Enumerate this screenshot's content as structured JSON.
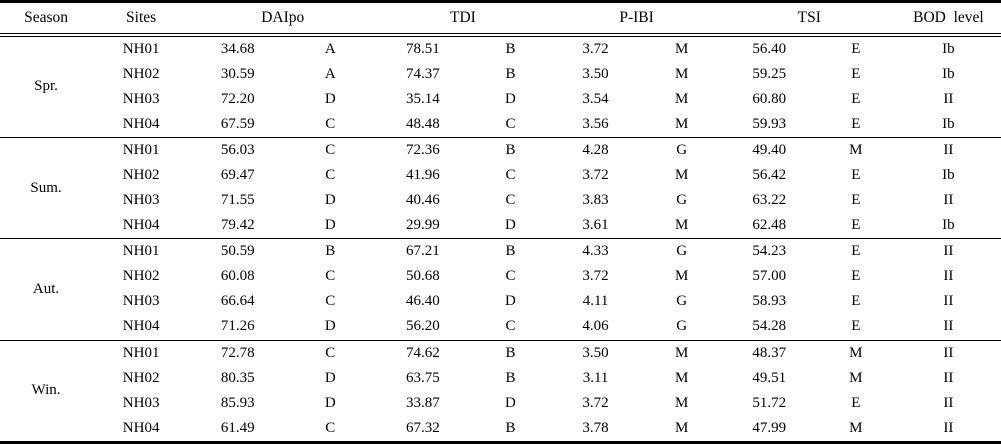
{
  "colors": {
    "text": "#000000",
    "background": "#ffffff",
    "border": "#000000"
  },
  "table": {
    "headers": {
      "season": "Season",
      "sites": "Sites",
      "daipo": "DAIpo",
      "tdi": "TDI",
      "pibi": "P-IBI",
      "tsi": "TSI",
      "bod": "BOD level"
    },
    "groups": [
      {
        "season": "Spr.",
        "rows": [
          {
            "site": "NH01",
            "daipo": "34.68",
            "daipo_grade": "A",
            "tdi": "78.51",
            "tdi_grade": "B",
            "pibi": "3.72",
            "pibi_grade": "M",
            "tsi": "56.40",
            "tsi_grade": "E",
            "bod": "Ib"
          },
          {
            "site": "NH02",
            "daipo": "30.59",
            "daipo_grade": "A",
            "tdi": "74.37",
            "tdi_grade": "B",
            "pibi": "3.50",
            "pibi_grade": "M",
            "tsi": "59.25",
            "tsi_grade": "E",
            "bod": "Ib"
          },
          {
            "site": "NH03",
            "daipo": "72.20",
            "daipo_grade": "D",
            "tdi": "35.14",
            "tdi_grade": "D",
            "pibi": "3.54",
            "pibi_grade": "M",
            "tsi": "60.80",
            "tsi_grade": "E",
            "bod": "II"
          },
          {
            "site": "NH04",
            "daipo": "67.59",
            "daipo_grade": "C",
            "tdi": "48.48",
            "tdi_grade": "C",
            "pibi": "3.56",
            "pibi_grade": "M",
            "tsi": "59.93",
            "tsi_grade": "E",
            "bod": "Ib"
          }
        ]
      },
      {
        "season": "Sum.",
        "rows": [
          {
            "site": "NH01",
            "daipo": "56.03",
            "daipo_grade": "C",
            "tdi": "72.36",
            "tdi_grade": "B",
            "pibi": "4.28",
            "pibi_grade": "G",
            "tsi": "49.40",
            "tsi_grade": "M",
            "bod": "II"
          },
          {
            "site": "NH02",
            "daipo": "69.47",
            "daipo_grade": "C",
            "tdi": "41.96",
            "tdi_grade": "C",
            "pibi": "3.72",
            "pibi_grade": "M",
            "tsi": "56.42",
            "tsi_grade": "E",
            "bod": "Ib"
          },
          {
            "site": "NH03",
            "daipo": "71.55",
            "daipo_grade": "D",
            "tdi": "40.46",
            "tdi_grade": "C",
            "pibi": "3.83",
            "pibi_grade": "G",
            "tsi": "63.22",
            "tsi_grade": "E",
            "bod": "II"
          },
          {
            "site": "NH04",
            "daipo": "79.42",
            "daipo_grade": "D",
            "tdi": "29.99",
            "tdi_grade": "D",
            "pibi": "3.61",
            "pibi_grade": "M",
            "tsi": "62.48",
            "tsi_grade": "E",
            "bod": "Ib"
          }
        ]
      },
      {
        "season": "Aut.",
        "rows": [
          {
            "site": "NH01",
            "daipo": "50.59",
            "daipo_grade": "B",
            "tdi": "67.21",
            "tdi_grade": "B",
            "pibi": "4.33",
            "pibi_grade": "G",
            "tsi": "54.23",
            "tsi_grade": "E",
            "bod": "II"
          },
          {
            "site": "NH02",
            "daipo": "60.08",
            "daipo_grade": "C",
            "tdi": "50.68",
            "tdi_grade": "C",
            "pibi": "3.72",
            "pibi_grade": "M",
            "tsi": "57.00",
            "tsi_grade": "E",
            "bod": "II"
          },
          {
            "site": "NH03",
            "daipo": "66.64",
            "daipo_grade": "C",
            "tdi": "46.40",
            "tdi_grade": "D",
            "pibi": "4.11",
            "pibi_grade": "G",
            "tsi": "58.93",
            "tsi_grade": "E",
            "bod": "II"
          },
          {
            "site": "NH04",
            "daipo": "71.26",
            "daipo_grade": "D",
            "tdi": "56.20",
            "tdi_grade": "C",
            "pibi": "4.06",
            "pibi_grade": "G",
            "tsi": "54.28",
            "tsi_grade": "E",
            "bod": "II"
          }
        ]
      },
      {
        "season": "Win.",
        "rows": [
          {
            "site": "NH01",
            "daipo": "72.78",
            "daipo_grade": "C",
            "tdi": "74.62",
            "tdi_grade": "B",
            "pibi": "3.50",
            "pibi_grade": "M",
            "tsi": "48.37",
            "tsi_grade": "M",
            "bod": "II"
          },
          {
            "site": "NH02",
            "daipo": "80.35",
            "daipo_grade": "D",
            "tdi": "63.75",
            "tdi_grade": "B",
            "pibi": "3.11",
            "pibi_grade": "M",
            "tsi": "49.51",
            "tsi_grade": "M",
            "bod": "II"
          },
          {
            "site": "NH03",
            "daipo": "85.93",
            "daipo_grade": "D",
            "tdi": "33.87",
            "tdi_grade": "D",
            "pibi": "3.72",
            "pibi_grade": "M",
            "tsi": "51.72",
            "tsi_grade": "E",
            "bod": "II"
          },
          {
            "site": "NH04",
            "daipo": "61.49",
            "daipo_grade": "C",
            "tdi": "67.32",
            "tdi_grade": "B",
            "pibi": "3.78",
            "pibi_grade": "M",
            "tsi": "47.99",
            "tsi_grade": "M",
            "bod": "II"
          }
        ]
      }
    ]
  },
  "chart_data": {
    "type": "table",
    "title": "",
    "columns": [
      "Season",
      "Sites",
      "DAIpo",
      "DAIpo grade",
      "TDI",
      "TDI grade",
      "P-IBI",
      "P-IBI grade",
      "TSI",
      "TSI grade",
      "BOD level"
    ],
    "rows": [
      [
        "Spr.",
        "NH01",
        34.68,
        "A",
        78.51,
        "B",
        3.72,
        "M",
        56.4,
        "E",
        "Ib"
      ],
      [
        "Spr.",
        "NH02",
        30.59,
        "A",
        74.37,
        "B",
        3.5,
        "M",
        59.25,
        "E",
        "Ib"
      ],
      [
        "Spr.",
        "NH03",
        72.2,
        "D",
        35.14,
        "D",
        3.54,
        "M",
        60.8,
        "E",
        "II"
      ],
      [
        "Spr.",
        "NH04",
        67.59,
        "C",
        48.48,
        "C",
        3.56,
        "M",
        59.93,
        "E",
        "Ib"
      ],
      [
        "Sum.",
        "NH01",
        56.03,
        "C",
        72.36,
        "B",
        4.28,
        "G",
        49.4,
        "M",
        "II"
      ],
      [
        "Sum.",
        "NH02",
        69.47,
        "C",
        41.96,
        "C",
        3.72,
        "M",
        56.42,
        "E",
        "Ib"
      ],
      [
        "Sum.",
        "NH03",
        71.55,
        "D",
        40.46,
        "C",
        3.83,
        "G",
        63.22,
        "E",
        "II"
      ],
      [
        "Sum.",
        "NH04",
        79.42,
        "D",
        29.99,
        "D",
        3.61,
        "M",
        62.48,
        "E",
        "Ib"
      ],
      [
        "Aut.",
        "NH01",
        50.59,
        "B",
        67.21,
        "B",
        4.33,
        "G",
        54.23,
        "E",
        "II"
      ],
      [
        "Aut.",
        "NH02",
        60.08,
        "C",
        50.68,
        "C",
        3.72,
        "M",
        57.0,
        "E",
        "II"
      ],
      [
        "Aut.",
        "NH03",
        66.64,
        "C",
        46.4,
        "D",
        4.11,
        "G",
        58.93,
        "E",
        "II"
      ],
      [
        "Aut.",
        "NH04",
        71.26,
        "D",
        56.2,
        "C",
        4.06,
        "G",
        54.28,
        "E",
        "II"
      ],
      [
        "Win.",
        "NH01",
        72.78,
        "C",
        74.62,
        "B",
        3.5,
        "M",
        48.37,
        "M",
        "II"
      ],
      [
        "Win.",
        "NH02",
        80.35,
        "D",
        63.75,
        "B",
        3.11,
        "M",
        49.51,
        "M",
        "II"
      ],
      [
        "Win.",
        "NH03",
        85.93,
        "D",
        33.87,
        "D",
        3.72,
        "M",
        51.72,
        "E",
        "II"
      ],
      [
        "Win.",
        "NH04",
        61.49,
        "C",
        67.32,
        "B",
        3.78,
        "M",
        47.99,
        "M",
        "II"
      ]
    ]
  }
}
